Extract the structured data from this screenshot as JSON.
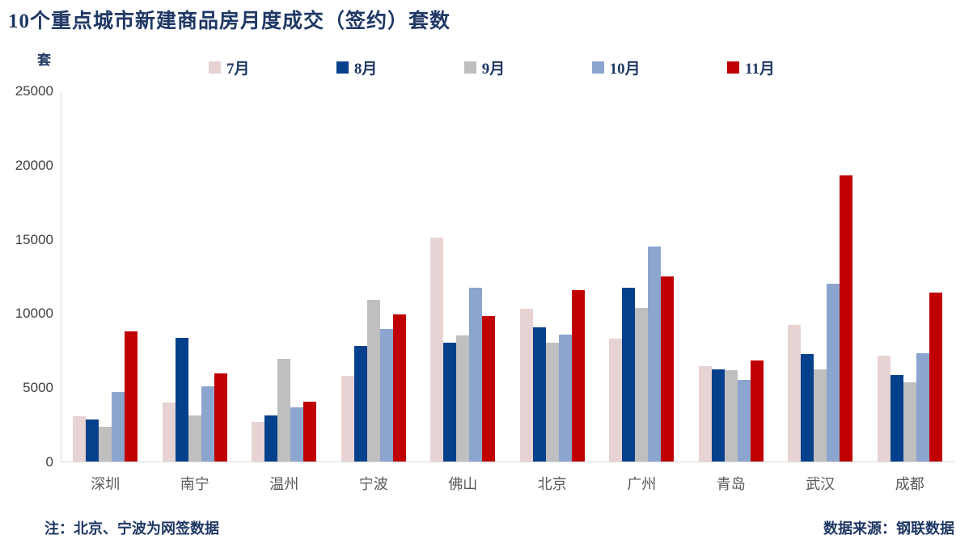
{
  "title": "10个重点城市新建商品房月度成交（签约）套数",
  "unit_label": "套",
  "note_left": "注：北京、宁波为网签数据",
  "source_right": "数据来源：钢联数据",
  "colors": {
    "title_text": "#1F3864",
    "axis_line": "#D9D9D9",
    "tick_label": "#3F3F3F",
    "category_label": "#595959"
  },
  "chart_data": {
    "type": "bar",
    "title": "10个重点城市新建商品房月度成交（签约）套数",
    "xlabel": "",
    "ylabel": "套",
    "ylim": [
      0,
      25000
    ],
    "yticks": [
      0,
      5000,
      10000,
      15000,
      20000,
      25000
    ],
    "grid": false,
    "legend_position": "top",
    "categories": [
      "深圳",
      "南宁",
      "温州",
      "宁波",
      "佛山",
      "北京",
      "广州",
      "青岛",
      "武汉",
      "成都"
    ],
    "series": [
      {
        "name": "7月",
        "color": "#E7D3D3",
        "values": [
          3050,
          4000,
          2700,
          5800,
          15100,
          10300,
          8300,
          6450,
          9250,
          7150
        ]
      },
      {
        "name": "8月",
        "color": "#05408C",
        "values": [
          2850,
          8350,
          3100,
          7800,
          8000,
          9050,
          11750,
          6200,
          7250,
          5850
        ]
      },
      {
        "name": "9月",
        "color": "#BFBFBF",
        "values": [
          2350,
          3100,
          6950,
          10900,
          8500,
          8000,
          10350,
          6150,
          6200,
          5350
        ]
      },
      {
        "name": "10月",
        "color": "#8CA5CE",
        "values": [
          4700,
          5100,
          3650,
          8950,
          11750,
          8550,
          14500,
          5500,
          12000,
          7300
        ]
      },
      {
        "name": "11月",
        "color": "#C00000",
        "values": [
          8800,
          5950,
          4050,
          9950,
          9850,
          11600,
          12500,
          6850,
          19300,
          11400
        ]
      }
    ]
  }
}
